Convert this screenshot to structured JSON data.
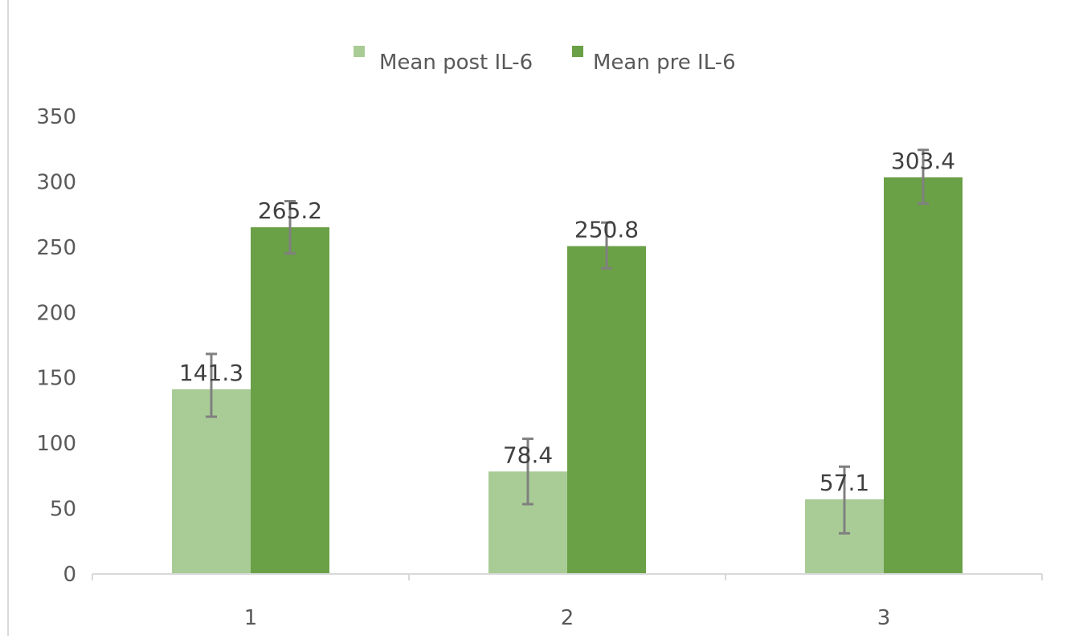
{
  "chart_data": {
    "type": "bar",
    "categories": [
      "1",
      "2",
      "3"
    ],
    "series": [
      {
        "name": "Mean post IL-6",
        "color": "#a9cc96",
        "values": [
          141.3,
          78.4,
          57.1
        ],
        "error_low": [
          21,
          25,
          26
        ],
        "error_high": [
          27,
          25,
          25
        ]
      },
      {
        "name": "Mean pre IL-6",
        "color": "#6aa046",
        "values": [
          265.2,
          250.8,
          303.4
        ],
        "error_low": [
          20,
          17,
          20
        ],
        "error_high": [
          20,
          18,
          21
        ]
      }
    ],
    "yticks": [
      "0",
      "50",
      "100",
      "150",
      "200",
      "250",
      "300",
      "350"
    ],
    "ylim": [
      0,
      350
    ],
    "title": "",
    "xlabel": "",
    "ylabel": "",
    "legend_position": "top-center",
    "grid": false,
    "axis_color": "#d9d9d9",
    "error_bar_color": "#808080"
  }
}
